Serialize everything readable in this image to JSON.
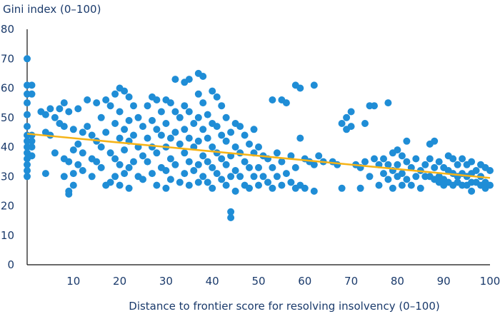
{
  "chart_data": {
    "type": "scatter",
    "title": "",
    "ylabel": "Gini index (0–100)",
    "xlabel": "Distance to frontier score for resolving insolvency (0–100)",
    "xlim": [
      0,
      100
    ],
    "ylim": [
      0,
      80
    ],
    "x_ticks": [
      "10",
      "20",
      "30",
      "40",
      "50",
      "60",
      "70",
      "80",
      "90",
      "100"
    ],
    "y_ticks": [
      "0",
      "10",
      "20",
      "30",
      "40",
      "50",
      "60",
      "70",
      "80"
    ],
    "grid": false,
    "point_color": "#1f8dd6",
    "trendline_color": "#f5b317",
    "trendline": {
      "x": [
        0,
        100
      ],
      "y": [
        44.5,
        29.5
      ]
    },
    "points": [
      [
        0,
        70
      ],
      [
        0,
        61
      ],
      [
        0,
        58
      ],
      [
        0,
        55
      ],
      [
        0,
        51
      ],
      [
        0,
        47
      ],
      [
        0,
        44
      ],
      [
        0,
        42
      ],
      [
        0,
        40
      ],
      [
        0,
        38
      ],
      [
        0,
        36
      ],
      [
        0,
        34
      ],
      [
        0,
        32
      ],
      [
        0,
        30
      ],
      [
        1,
        61
      ],
      [
        1,
        58
      ],
      [
        1,
        44
      ],
      [
        1,
        42
      ],
      [
        1,
        40
      ],
      [
        1,
        37
      ],
      [
        3,
        52
      ],
      [
        4,
        51
      ],
      [
        4,
        45
      ],
      [
        4,
        31
      ],
      [
        5,
        53
      ],
      [
        5,
        44
      ],
      [
        6,
        50
      ],
      [
        6,
        38
      ],
      [
        7,
        53
      ],
      [
        7,
        48
      ],
      [
        8,
        55
      ],
      [
        8,
        47
      ],
      [
        8,
        36
      ],
      [
        8,
        30
      ],
      [
        9,
        52
      ],
      [
        9,
        35
      ],
      [
        9,
        25
      ],
      [
        9,
        24
      ],
      [
        10,
        46
      ],
      [
        10,
        39
      ],
      [
        10,
        31
      ],
      [
        10,
        27
      ],
      [
        11,
        53
      ],
      [
        11,
        41
      ],
      [
        11,
        34
      ],
      [
        12,
        45
      ],
      [
        12,
        38
      ],
      [
        12,
        32
      ],
      [
        13,
        47
      ],
      [
        13,
        56
      ],
      [
        14,
        44
      ],
      [
        14,
        36
      ],
      [
        14,
        30
      ],
      [
        15,
        55
      ],
      [
        15,
        42
      ],
      [
        15,
        35
      ],
      [
        16,
        50
      ],
      [
        16,
        40
      ],
      [
        16,
        33
      ],
      [
        17,
        56
      ],
      [
        17,
        45
      ],
      [
        17,
        27
      ],
      [
        18,
        54
      ],
      [
        18,
        38
      ],
      [
        18,
        28
      ],
      [
        19,
        58
      ],
      [
        19,
        48
      ],
      [
        19,
        36
      ],
      [
        19,
        30
      ],
      [
        20,
        60
      ],
      [
        20,
        52
      ],
      [
        20,
        43
      ],
      [
        20,
        34
      ],
      [
        20,
        27
      ],
      [
        21,
        59
      ],
      [
        21,
        46
      ],
      [
        21,
        39
      ],
      [
        21,
        31
      ],
      [
        22,
        57
      ],
      [
        22,
        49
      ],
      [
        22,
        42
      ],
      [
        22,
        33
      ],
      [
        22,
        26
      ],
      [
        23,
        54
      ],
      [
        23,
        44
      ],
      [
        23,
        35
      ],
      [
        24,
        50
      ],
      [
        24,
        40
      ],
      [
        24,
        30
      ],
      [
        25,
        47
      ],
      [
        25,
        37
      ],
      [
        25,
        29
      ],
      [
        26,
        54
      ],
      [
        26,
        43
      ],
      [
        26,
        35
      ],
      [
        27,
        57
      ],
      [
        27,
        49
      ],
      [
        27,
        40
      ],
      [
        27,
        31
      ],
      [
        28,
        56
      ],
      [
        28,
        46
      ],
      [
        28,
        38
      ],
      [
        28,
        27
      ],
      [
        29,
        52
      ],
      [
        29,
        44
      ],
      [
        29,
        33
      ],
      [
        30,
        56
      ],
      [
        30,
        48
      ],
      [
        30,
        40
      ],
      [
        30,
        32
      ],
      [
        30,
        26
      ],
      [
        31,
        55
      ],
      [
        31,
        43
      ],
      [
        31,
        36
      ],
      [
        31,
        29
      ],
      [
        32,
        63
      ],
      [
        32,
        52
      ],
      [
        32,
        45
      ],
      [
        32,
        34
      ],
      [
        33,
        50
      ],
      [
        33,
        41
      ],
      [
        33,
        28
      ],
      [
        34,
        62
      ],
      [
        34,
        54
      ],
      [
        34,
        46
      ],
      [
        34,
        38
      ],
      [
        34,
        31
      ],
      [
        35,
        63
      ],
      [
        35,
        52
      ],
      [
        35,
        43
      ],
      [
        35,
        35
      ],
      [
        35,
        27
      ],
      [
        36,
        48
      ],
      [
        36,
        40
      ],
      [
        36,
        32
      ],
      [
        37,
        65
      ],
      [
        37,
        58
      ],
      [
        37,
        50
      ],
      [
        37,
        42
      ],
      [
        37,
        34
      ],
      [
        37,
        28
      ],
      [
        38,
        64
      ],
      [
        38,
        55
      ],
      [
        38,
        46
      ],
      [
        38,
        37
      ],
      [
        38,
        30
      ],
      [
        39,
        51
      ],
      [
        39,
        43
      ],
      [
        39,
        35
      ],
      [
        39,
        28
      ],
      [
        40,
        59
      ],
      [
        40,
        48
      ],
      [
        40,
        40
      ],
      [
        40,
        33
      ],
      [
        40,
        26
      ],
      [
        41,
        57
      ],
      [
        41,
        47
      ],
      [
        41,
        38
      ],
      [
        41,
        31
      ],
      [
        42,
        54
      ],
      [
        42,
        44
      ],
      [
        42,
        36
      ],
      [
        42,
        29
      ],
      [
        43,
        50
      ],
      [
        43,
        42
      ],
      [
        43,
        34
      ],
      [
        43,
        27
      ],
      [
        44,
        18
      ],
      [
        44,
        16
      ],
      [
        44,
        45
      ],
      [
        44,
        37
      ],
      [
        44,
        30
      ],
      [
        45,
        48
      ],
      [
        45,
        40
      ],
      [
        45,
        32
      ],
      [
        45,
        25
      ],
      [
        46,
        47
      ],
      [
        46,
        38
      ],
      [
        46,
        30
      ],
      [
        47,
        44
      ],
      [
        47,
        35
      ],
      [
        47,
        27
      ],
      [
        48,
        41
      ],
      [
        48,
        33
      ],
      [
        48,
        26
      ],
      [
        49,
        46
      ],
      [
        49,
        38
      ],
      [
        49,
        30
      ],
      [
        50,
        40
      ],
      [
        50,
        33
      ],
      [
        50,
        27
      ],
      [
        51,
        37
      ],
      [
        51,
        30
      ],
      [
        52,
        36
      ],
      [
        52,
        28
      ],
      [
        53,
        56
      ],
      [
        53,
        33
      ],
      [
        53,
        26
      ],
      [
        54,
        38
      ],
      [
        54,
        30
      ],
      [
        55,
        56
      ],
      [
        55,
        35
      ],
      [
        55,
        27
      ],
      [
        56,
        55
      ],
      [
        56,
        31
      ],
      [
        57,
        37
      ],
      [
        57,
        28
      ],
      [
        58,
        61
      ],
      [
        58,
        33
      ],
      [
        58,
        26
      ],
      [
        59,
        60
      ],
      [
        59,
        43
      ],
      [
        59,
        27
      ],
      [
        60,
        36
      ],
      [
        60,
        26
      ],
      [
        61,
        35
      ],
      [
        62,
        61
      ],
      [
        62,
        34
      ],
      [
        62,
        25
      ],
      [
        63,
        37
      ],
      [
        64,
        35
      ],
      [
        66,
        35
      ],
      [
        67,
        34
      ],
      [
        68,
        26
      ],
      [
        68,
        48
      ],
      [
        69,
        50
      ],
      [
        69,
        46
      ],
      [
        70,
        52
      ],
      [
        70,
        47
      ],
      [
        71,
        34
      ],
      [
        72,
        33
      ],
      [
        72,
        26
      ],
      [
        73,
        48
      ],
      [
        73,
        35
      ],
      [
        74,
        54
      ],
      [
        74,
        30
      ],
      [
        75,
        54
      ],
      [
        75,
        36
      ],
      [
        76,
        34
      ],
      [
        76,
        27
      ],
      [
        77,
        36
      ],
      [
        77,
        31
      ],
      [
        78,
        55
      ],
      [
        78,
        34
      ],
      [
        78,
        29
      ],
      [
        79,
        38
      ],
      [
        79,
        32
      ],
      [
        79,
        26
      ],
      [
        80,
        39
      ],
      [
        80,
        34
      ],
      [
        80,
        30
      ],
      [
        81,
        37
      ],
      [
        81,
        31
      ],
      [
        81,
        27
      ],
      [
        82,
        42
      ],
      [
        82,
        35
      ],
      [
        82,
        29
      ],
      [
        83,
        33
      ],
      [
        83,
        27
      ],
      [
        84,
        36
      ],
      [
        84,
        30
      ],
      [
        85,
        32
      ],
      [
        85,
        26
      ],
      [
        86,
        34
      ],
      [
        86,
        30
      ],
      [
        87,
        41
      ],
      [
        87,
        36
      ],
      [
        87,
        30
      ],
      [
        88,
        42
      ],
      [
        88,
        33
      ],
      [
        88,
        29
      ],
      [
        89,
        35
      ],
      [
        89,
        30
      ],
      [
        89,
        28
      ],
      [
        90,
        33
      ],
      [
        90,
        29
      ],
      [
        90,
        27
      ],
      [
        91,
        37
      ],
      [
        91,
        32
      ],
      [
        91,
        28
      ],
      [
        92,
        36
      ],
      [
        92,
        31
      ],
      [
        92,
        27
      ],
      [
        93,
        34
      ],
      [
        93,
        30
      ],
      [
        93,
        28
      ],
      [
        94,
        36
      ],
      [
        94,
        31
      ],
      [
        94,
        27
      ],
      [
        95,
        34
      ],
      [
        95,
        30
      ],
      [
        95,
        27
      ],
      [
        96,
        35
      ],
      [
        96,
        31
      ],
      [
        96,
        28
      ],
      [
        96,
        25
      ],
      [
        97,
        32
      ],
      [
        97,
        28
      ],
      [
        98,
        34
      ],
      [
        98,
        30
      ],
      [
        98,
        27
      ],
      [
        99,
        33
      ],
      [
        99,
        28
      ],
      [
        99,
        26
      ],
      [
        100,
        32
      ],
      [
        100,
        27
      ]
    ]
  }
}
